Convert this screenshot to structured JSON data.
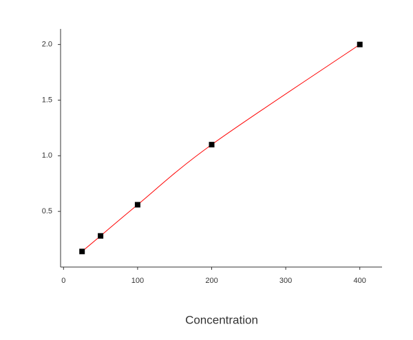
{
  "chart_data": {
    "type": "scatter",
    "x_label": "Concentration",
    "x": [
      25,
      50,
      100,
      200,
      400
    ],
    "series": [
      {
        "color": "#000000",
        "line_color": "#ff0000",
        "values": [
          0.14,
          0.28,
          0.56,
          1.1,
          2.0
        ]
      }
    ],
    "xlim": [
      -4,
      430
    ],
    "xticks": [
      0,
      100,
      200,
      300,
      400
    ],
    "ylim": [
      0,
      2.14
    ],
    "yticks": [
      0.5,
      {
        "value": 1.0,
        "label": "1.0"
      },
      1.5,
      {
        "value": 2.0,
        "label": "2.0"
      }
    ]
  }
}
